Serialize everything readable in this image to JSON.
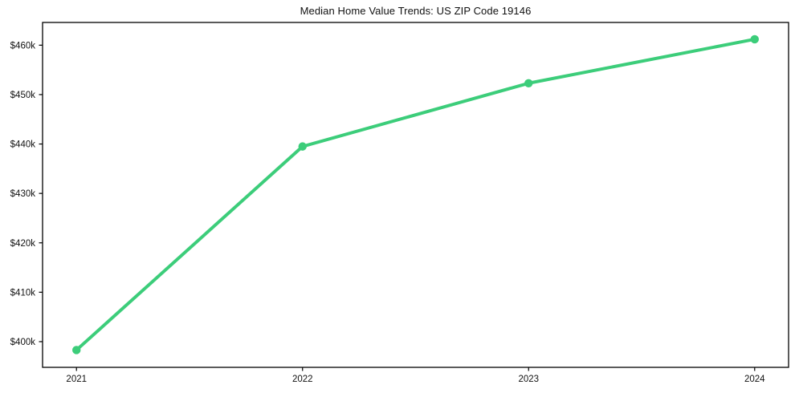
{
  "chart_data": {
    "type": "line",
    "title": "Median Home Value Trends: US ZIP Code 19146",
    "x": [
      2021,
      2022,
      2023,
      2024
    ],
    "x_tick_labels": [
      "2021",
      "2022",
      "2023",
      "2024"
    ],
    "values": [
      398300,
      439500,
      452300,
      461200
    ],
    "y_ticks": [
      400000,
      410000,
      420000,
      430000,
      440000,
      450000,
      460000
    ],
    "y_tick_labels": [
      "$400k",
      "$410k",
      "$420k",
      "$430k",
      "$440k",
      "$450k",
      "$460k"
    ],
    "xlim": [
      2020.85,
      2024.15
    ],
    "ylim": [
      394800,
      464600
    ],
    "xlabel": "",
    "ylabel": "",
    "grid": false,
    "legend": "none",
    "line_color": "#3ccd7a",
    "marker_color": "#3ccd7a",
    "axis_color": "#000000",
    "text_color": "#111111",
    "background": "#ffffff"
  }
}
